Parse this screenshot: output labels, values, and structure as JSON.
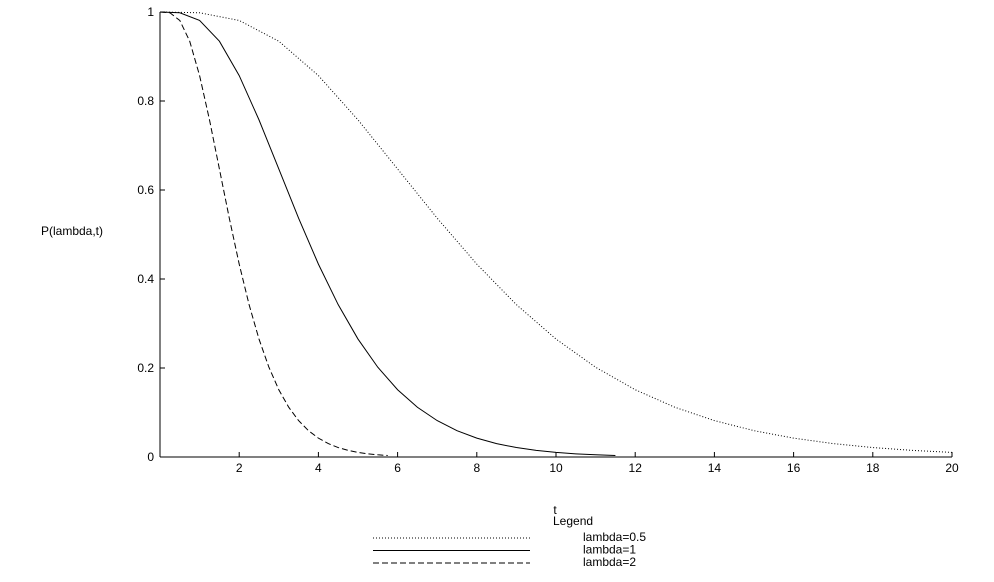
{
  "chart_data": {
    "type": "line",
    "xlabel": "t",
    "ylabel": "P(lambda,t)",
    "legend_title": "Legend",
    "xlim": [
      0,
      20
    ],
    "ylim": [
      0,
      1
    ],
    "xticks": [
      2,
      4,
      6,
      8,
      10,
      12,
      14,
      16,
      18,
      20
    ],
    "yticks": [
      0,
      0.2,
      0.4,
      0.6,
      0.8,
      1
    ],
    "legend_position": "bottom",
    "series": [
      {
        "name": "lambda=0.5",
        "color": "#000000",
        "dash": "1,2",
        "x": [
          0,
          1,
          2,
          3,
          4,
          5,
          6,
          7,
          8,
          9,
          10,
          11,
          12,
          13,
          14,
          15,
          16,
          17,
          18,
          19,
          20
        ],
        "values": [
          1,
          0.99825,
          0.98101,
          0.93436,
          0.85712,
          0.75758,
          0.64723,
          0.53663,
          0.43347,
          0.3423,
          0.26503,
          0.2017,
          0.1512,
          0.11185,
          0.08177,
          0.05915,
          0.04238,
          0.03011,
          0.02123,
          0.01486,
          0.01034
        ]
      },
      {
        "name": "lambda=1",
        "color": "#000000",
        "dash": "none",
        "x": [
          0,
          0.5,
          1,
          1.5,
          2,
          2.5,
          3,
          3.5,
          4,
          4.5,
          5,
          5.5,
          6,
          6.5,
          7,
          7.5,
          8,
          8.5,
          9,
          9.5,
          10,
          10.5,
          11,
          11.5
        ],
        "values": [
          1,
          0.99825,
          0.98101,
          0.93436,
          0.85712,
          0.75758,
          0.64723,
          0.53663,
          0.43347,
          0.3423,
          0.26503,
          0.2017,
          0.1512,
          0.11185,
          0.08177,
          0.05915,
          0.04238,
          0.03011,
          0.02123,
          0.01486,
          0.01034,
          0.00715,
          0.00492,
          0.00337
        ]
      },
      {
        "name": "lambda=2",
        "color": "#000000",
        "dash": "6,3",
        "x": [
          0,
          0.25,
          0.5,
          0.75,
          1,
          1.25,
          1.5,
          1.75,
          2,
          2.25,
          2.5,
          2.75,
          3,
          3.25,
          3.5,
          3.75,
          4,
          4.25,
          4.5,
          4.75,
          5,
          5.25,
          5.5,
          5.75
        ],
        "values": [
          1,
          0.99825,
          0.98101,
          0.93436,
          0.85712,
          0.75758,
          0.64723,
          0.53663,
          0.43347,
          0.3423,
          0.26503,
          0.2017,
          0.1512,
          0.11185,
          0.08177,
          0.05915,
          0.04238,
          0.03011,
          0.02123,
          0.01486,
          0.01034,
          0.00715,
          0.00492,
          0.00337
        ]
      }
    ]
  }
}
